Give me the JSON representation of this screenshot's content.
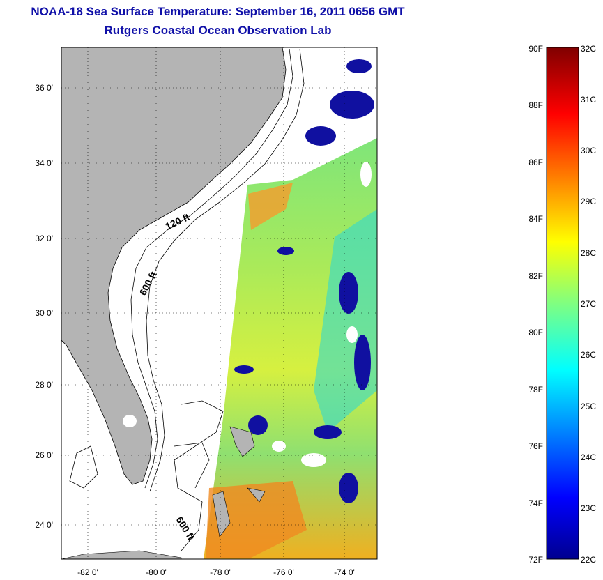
{
  "title": {
    "line1": "NOAA-18 Sea Surface Temperature:  September 16, 2011 0656 GMT",
    "line2": "Rutgers Coastal Ocean Observation Lab"
  },
  "map": {
    "lat_ticks": [
      "36 0'",
      "34 0'",
      "32 0'",
      "30 0'",
      "28 0'",
      "26 0'",
      "24 0'"
    ],
    "lon_ticks": [
      "-82 0'",
      "-80 0'",
      "-78 0'",
      "-76 0'",
      "-74 0'"
    ],
    "lat_range": [
      23.0,
      37.1
    ],
    "lon_range": [
      -83.0,
      -72.8
    ],
    "contour_labels": [
      "120 ft",
      "600 ft",
      "600 ft"
    ],
    "land_color": "#b4b4b4"
  },
  "colorbar": {
    "f_labels": [
      "90F",
      "88F",
      "86F",
      "84F",
      "82F",
      "80F",
      "78F",
      "76F",
      "74F",
      "72F"
    ],
    "c_labels": [
      "32C",
      "31C",
      "30C",
      "29C",
      "28C",
      "27C",
      "26C",
      "25C",
      "24C",
      "23C",
      "22C"
    ],
    "range_c": [
      22,
      32
    ],
    "colormap": "jet"
  }
}
